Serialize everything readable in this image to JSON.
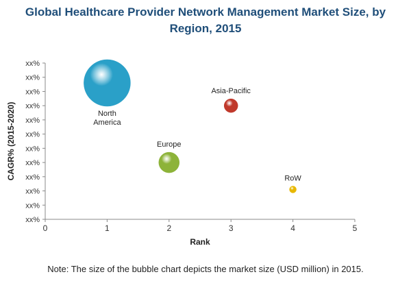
{
  "title_line1": "Global Healthcare Provider Network Management Market Size, by",
  "title_line2": "Region, 2015",
  "note": "Note: The size of the bubble chart depicts the market size (USD million) in 2015.",
  "colors": {
    "title": "#1f4e79",
    "North America": "#2aa0c8",
    "Asia-Pacific": "#c0392b",
    "Europe": "#8db339",
    "RoW": "#e8b800"
  },
  "chart_data": {
    "type": "scatter",
    "subtype": "bubble",
    "title": "Global Healthcare Provider Network Management Market Size, by Region, 2015",
    "xlabel": "Rank",
    "ylabel": "CAGR% (2015-2020)",
    "xlim": [
      0,
      5
    ],
    "xticks": [
      "0",
      "1",
      "2",
      "3",
      "4",
      "5"
    ],
    "ytick_label": "xx%",
    "ytick_count": 12,
    "ylim": [
      0,
      11
    ],
    "grid": false,
    "points": [
      {
        "label": "North America",
        "label_lines": [
          "North",
          "America"
        ],
        "x": 1,
        "y": 9.6,
        "size": 34,
        "color": "#2aa0c8"
      },
      {
        "label": "Asia-Pacific",
        "label_lines": [
          "Asia-Pacific"
        ],
        "x": 3,
        "y": 8.0,
        "size": 10,
        "color": "#c0392b"
      },
      {
        "label": "Europe",
        "label_lines": [
          "Europe"
        ],
        "x": 2,
        "y": 4.0,
        "size": 15,
        "color": "#8db339"
      },
      {
        "label": "RoW",
        "label_lines": [
          "RoW"
        ],
        "x": 4,
        "y": 2.1,
        "size": 5,
        "color": "#e8b800"
      }
    ],
    "note": "Note: The size of the bubble chart depicts the market size (USD million) in 2015."
  }
}
